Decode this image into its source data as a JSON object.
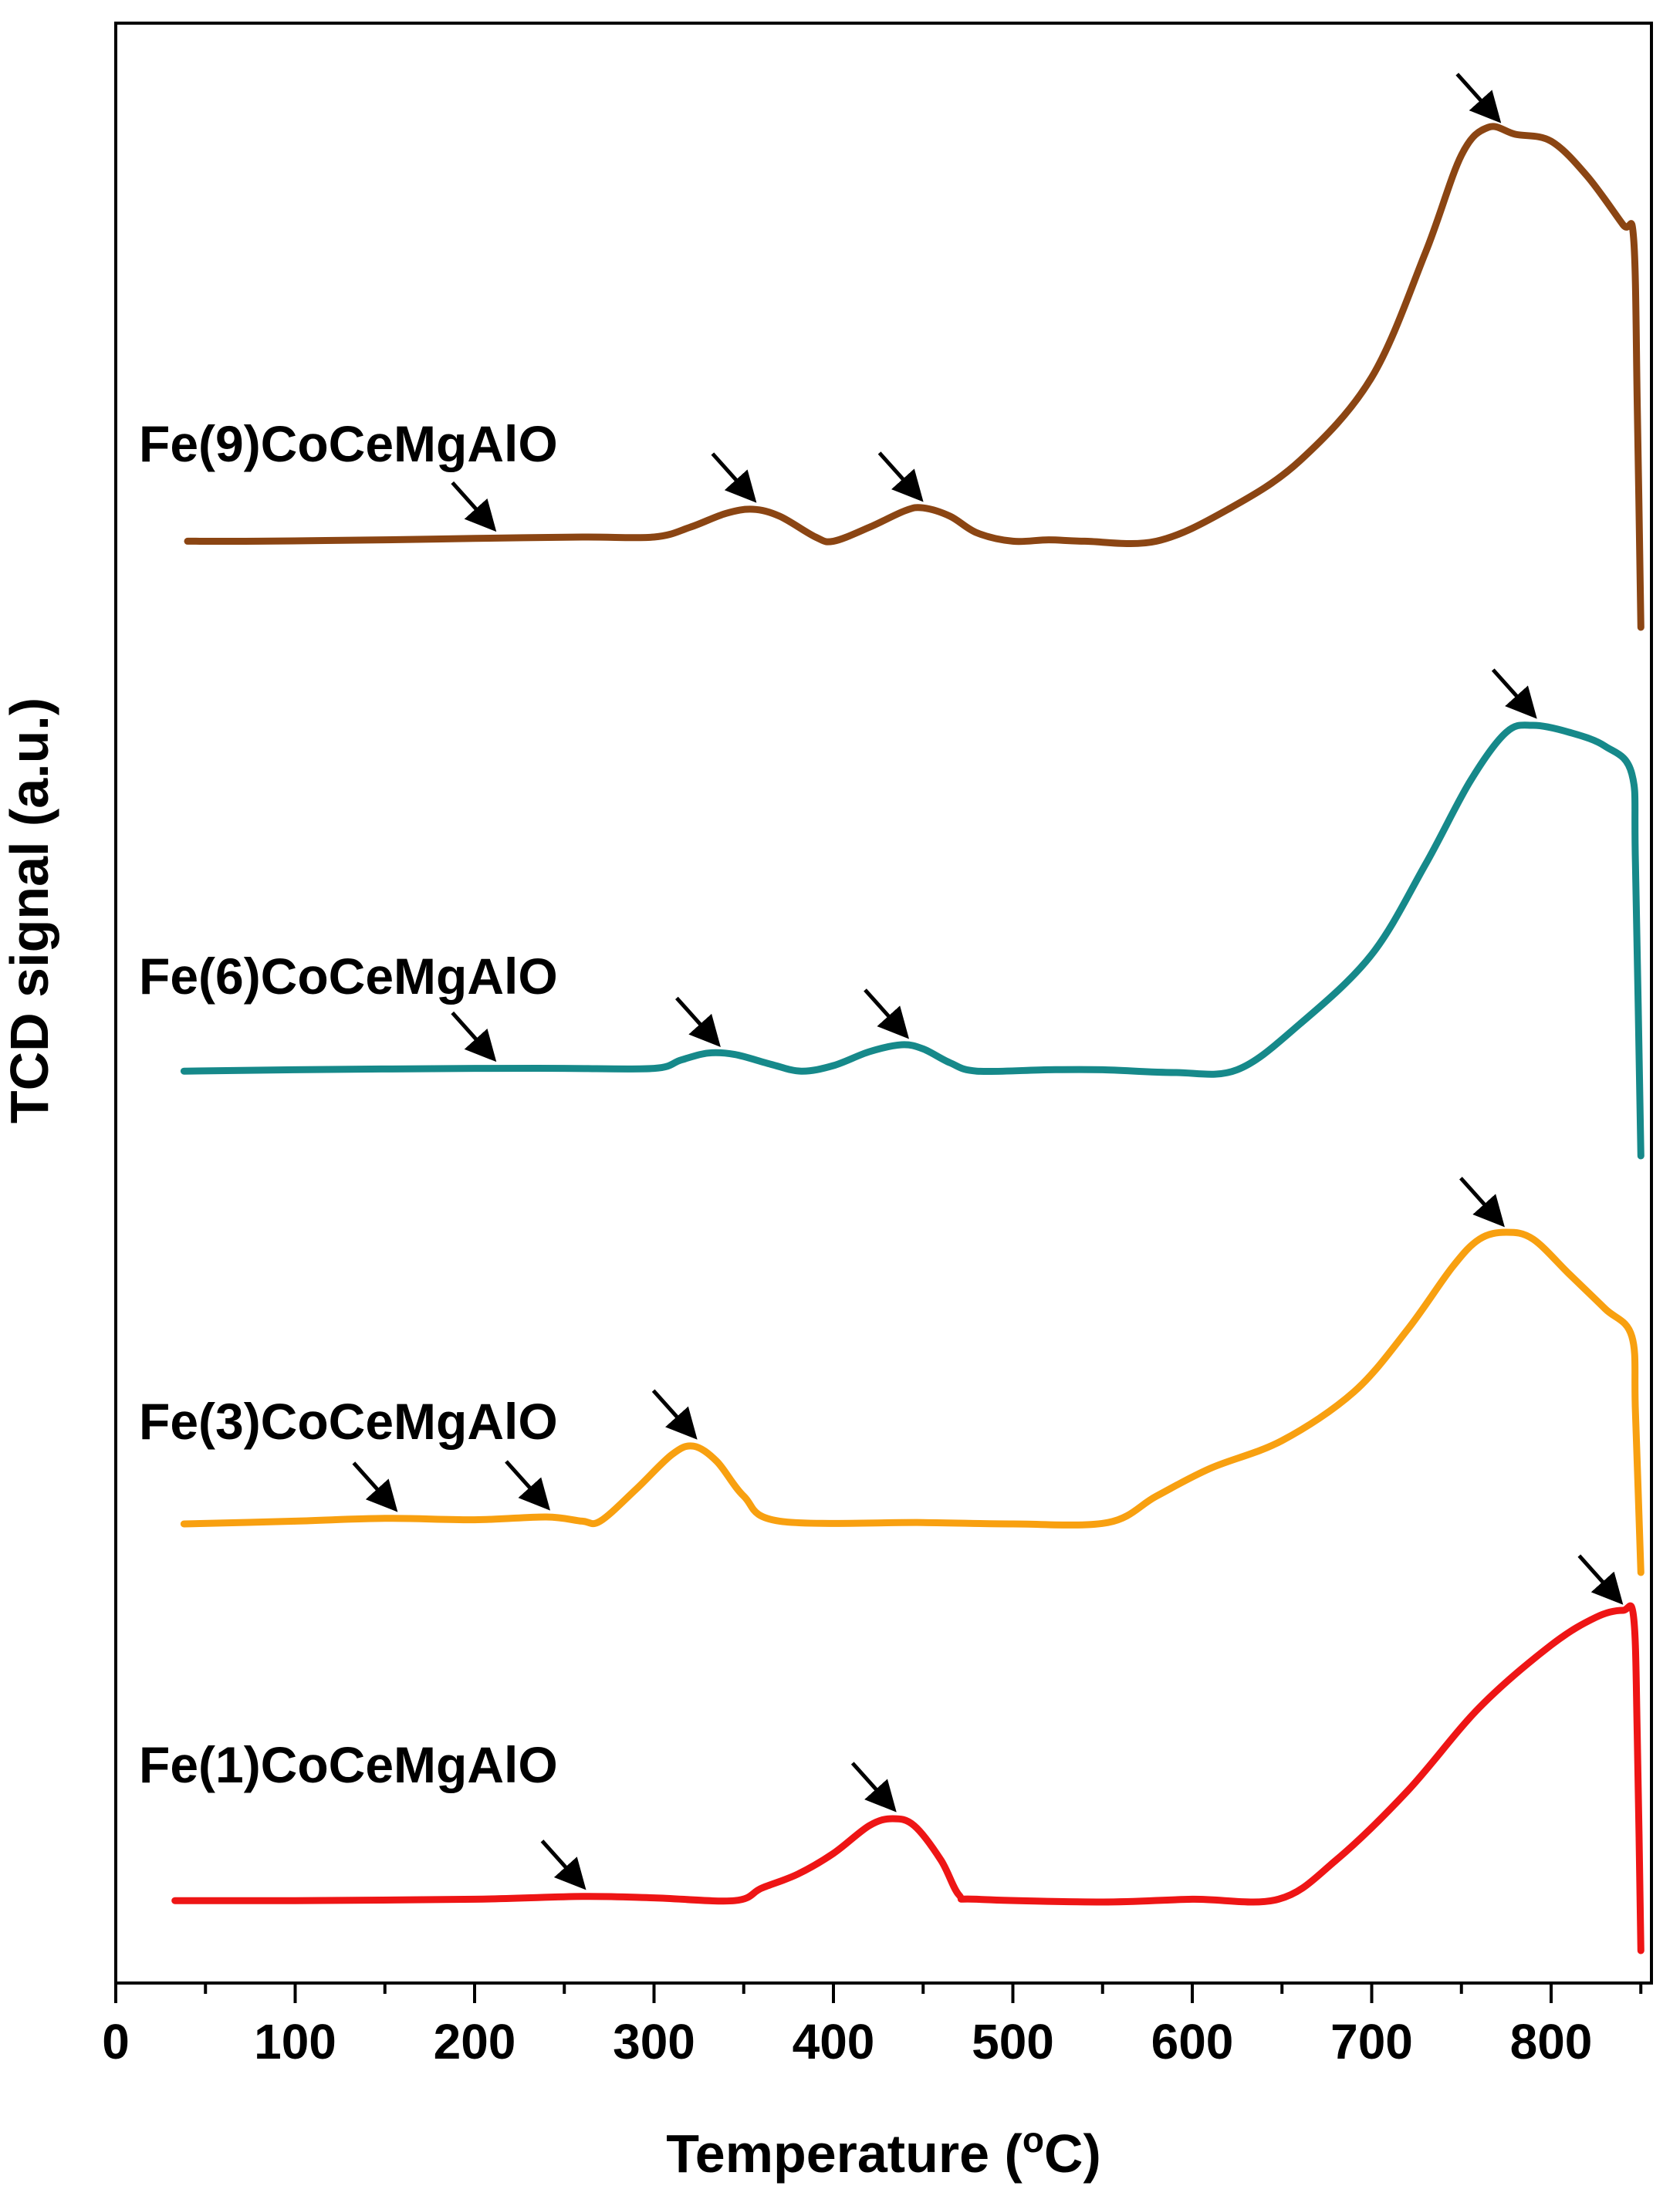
{
  "chart_data": {
    "type": "line",
    "title": "",
    "xlabel": "Temperature (",
    "xlabel_sup": "o",
    "xlabel_tail": "C)",
    "ylabel": "TCD signal (a.u.)",
    "xlim": [
      0,
      850
    ],
    "xticks": [
      0,
      100,
      200,
      300,
      400,
      500,
      600,
      700,
      800
    ],
    "xtick_labels": [
      "0",
      "100",
      "200",
      "300",
      "400",
      "500",
      "600",
      "700",
      "800"
    ],
    "yticks_shown": false,
    "legend": "none (series labelled inline, top-left of each curve)",
    "series": [
      {
        "name": "Fe(9)CoCeMgAlO",
        "color": "#8B4513",
        "points": [
          [
            40,
            0.02
          ],
          [
            80,
            0.02
          ],
          [
            150,
            0.03
          ],
          [
            200,
            0.04
          ],
          [
            260,
            0.05
          ],
          [
            300,
            0.05
          ],
          [
            320,
            0.12
          ],
          [
            340,
            0.22
          ],
          [
            355,
            0.25
          ],
          [
            370,
            0.2
          ],
          [
            390,
            0.05
          ],
          [
            400,
            0.02
          ],
          [
            420,
            0.12
          ],
          [
            440,
            0.24
          ],
          [
            450,
            0.26
          ],
          [
            465,
            0.2
          ],
          [
            480,
            0.08
          ],
          [
            500,
            0.02
          ],
          [
            520,
            0.03
          ],
          [
            540,
            0.02
          ],
          [
            580,
            0.02
          ],
          [
            620,
            0.25
          ],
          [
            660,
            0.6
          ],
          [
            700,
            1.2
          ],
          [
            730,
            2.1
          ],
          [
            750,
            2.8
          ],
          [
            765,
            3.0
          ],
          [
            780,
            2.95
          ],
          [
            800,
            2.9
          ],
          [
            820,
            2.65
          ],
          [
            840,
            2.3
          ],
          [
            846,
            2.2
          ],
          [
            848,
            1.0
          ],
          [
            850,
            -0.6
          ]
        ],
        "arrows_at_x": [
          210,
          355,
          448,
          770
        ]
      },
      {
        "name": "Fe(6)CoCeMgAlO",
        "color": "#16898A",
        "points": [
          [
            38,
            0.01
          ],
          [
            100,
            0.02
          ],
          [
            200,
            0.03
          ],
          [
            250,
            0.03
          ],
          [
            300,
            0.03
          ],
          [
            315,
            0.09
          ],
          [
            330,
            0.14
          ],
          [
            345,
            0.13
          ],
          [
            365,
            0.06
          ],
          [
            382,
            0.01
          ],
          [
            400,
            0.05
          ],
          [
            420,
            0.15
          ],
          [
            438,
            0.2
          ],
          [
            450,
            0.17
          ],
          [
            465,
            0.07
          ],
          [
            480,
            0.01
          ],
          [
            520,
            0.02
          ],
          [
            550,
            0.02
          ],
          [
            590,
            0.0
          ],
          [
            625,
            0.02
          ],
          [
            660,
            0.35
          ],
          [
            700,
            0.85
          ],
          [
            730,
            1.5
          ],
          [
            755,
            2.1
          ],
          [
            775,
            2.45
          ],
          [
            790,
            2.5
          ],
          [
            810,
            2.45
          ],
          [
            830,
            2.35
          ],
          [
            845,
            2.15
          ],
          [
            847,
            1.5
          ],
          [
            850,
            -0.6
          ]
        ],
        "arrows_at_x": [
          210,
          335,
          440,
          790
        ]
      },
      {
        "name": "Fe(3)CoCeMgAlO",
        "color": "#F8A010",
        "points": [
          [
            38,
            0.0
          ],
          [
            100,
            0.02
          ],
          [
            150,
            0.04
          ],
          [
            200,
            0.03
          ],
          [
            240,
            0.05
          ],
          [
            260,
            0.02
          ],
          [
            270,
            0.02
          ],
          [
            290,
            0.25
          ],
          [
            310,
            0.5
          ],
          [
            322,
            0.56
          ],
          [
            335,
            0.45
          ],
          [
            350,
            0.2
          ],
          [
            370,
            0.02
          ],
          [
            450,
            0.01
          ],
          [
            500,
            0.0
          ],
          [
            553,
            0.01
          ],
          [
            580,
            0.2
          ],
          [
            610,
            0.4
          ],
          [
            650,
            0.6
          ],
          [
            690,
            0.95
          ],
          [
            720,
            1.4
          ],
          [
            745,
            1.85
          ],
          [
            760,
            2.05
          ],
          [
            775,
            2.1
          ],
          [
            790,
            2.05
          ],
          [
            810,
            1.8
          ],
          [
            830,
            1.55
          ],
          [
            845,
            1.35
          ],
          [
            847,
            0.8
          ],
          [
            850,
            -0.35
          ]
        ],
        "arrows_at_x": [
          155,
          240,
          322,
          772
        ]
      },
      {
        "name": "Fe(1)CoCeMgAlO",
        "color": "#EE1515",
        "points": [
          [
            33,
            0.01
          ],
          [
            100,
            0.01
          ],
          [
            200,
            0.02
          ],
          [
            260,
            0.04
          ],
          [
            300,
            0.03
          ],
          [
            345,
            0.01
          ],
          [
            360,
            0.1
          ],
          [
            380,
            0.2
          ],
          [
            400,
            0.35
          ],
          [
            420,
            0.55
          ],
          [
            433,
            0.6
          ],
          [
            445,
            0.55
          ],
          [
            460,
            0.3
          ],
          [
            470,
            0.05
          ],
          [
            480,
            0.02
          ],
          [
            550,
            0.0
          ],
          [
            600,
            0.02
          ],
          [
            648,
            0.02
          ],
          [
            680,
            0.3
          ],
          [
            720,
            0.8
          ],
          [
            760,
            1.4
          ],
          [
            800,
            1.85
          ],
          [
            825,
            2.05
          ],
          [
            840,
            2.1
          ],
          [
            846,
            2.05
          ],
          [
            848,
            1.2
          ],
          [
            850,
            -0.35
          ]
        ],
        "arrows_at_x": [
          260,
          433,
          838
        ]
      }
    ]
  }
}
